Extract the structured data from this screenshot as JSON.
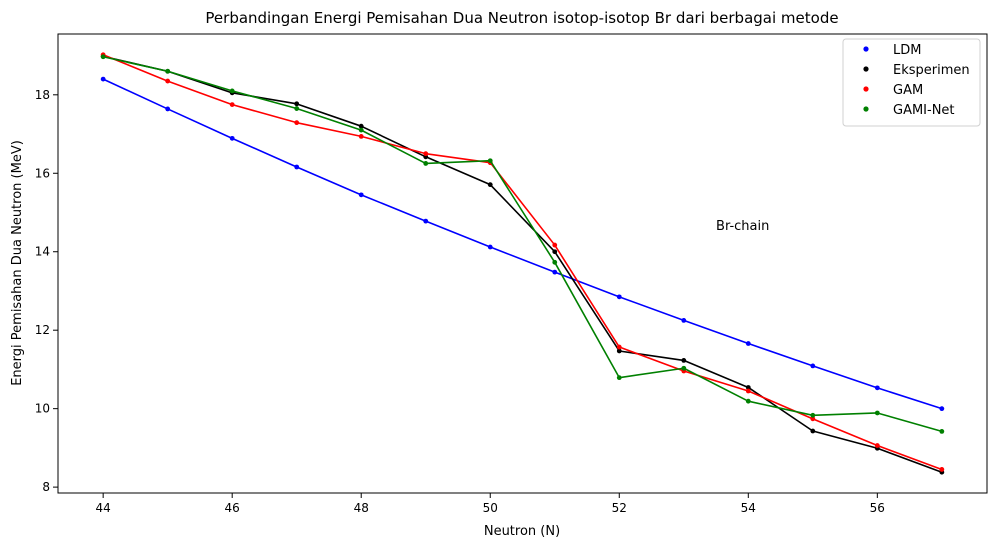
{
  "chart_data": {
    "type": "line",
    "title": "Perbandingan Energi Pemisahan Dua Neutron isotop-isotop Br dari berbagai metode",
    "xlabel": "Neutron (N)",
    "ylabel": "Energi Pemisahan Dua Neutron (MeV)",
    "xlim": [
      43.3,
      57.7
    ],
    "ylim": [
      7.85,
      19.55
    ],
    "xticks": [
      44,
      46,
      48,
      50,
      52,
      54,
      56
    ],
    "yticks": [
      8,
      10,
      12,
      14,
      16,
      18
    ],
    "x": [
      44,
      45,
      46,
      47,
      48,
      49,
      50,
      51,
      52,
      53,
      54,
      55,
      56,
      57
    ],
    "grid": false,
    "legend_position": "top-right",
    "annotation": "Br-chain",
    "series": [
      {
        "name": "LDM",
        "color": "#0000ff",
        "values": [
          18.4,
          17.64,
          16.89,
          16.16,
          15.45,
          14.78,
          14.12,
          13.48,
          12.85,
          12.25,
          11.66,
          11.09,
          10.53,
          10.0
        ]
      },
      {
        "name": "Eksperimen",
        "color": "#000000",
        "values": [
          18.98,
          18.6,
          18.05,
          17.77,
          17.2,
          16.42,
          15.71,
          14.0,
          11.47,
          11.23,
          10.54,
          9.43,
          8.99,
          8.38
        ]
      },
      {
        "name": "GAM",
        "color": "#ff0000",
        "values": [
          19.02,
          18.35,
          17.75,
          17.29,
          16.94,
          16.5,
          16.27,
          14.17,
          11.57,
          10.96,
          10.45,
          9.74,
          9.06,
          8.45
        ]
      },
      {
        "name": "GAMI-Net",
        "color": "#008000",
        "values": [
          18.97,
          18.6,
          18.1,
          17.65,
          17.1,
          16.25,
          16.32,
          13.73,
          10.79,
          11.03,
          10.19,
          9.83,
          9.89,
          9.42
        ]
      }
    ]
  }
}
